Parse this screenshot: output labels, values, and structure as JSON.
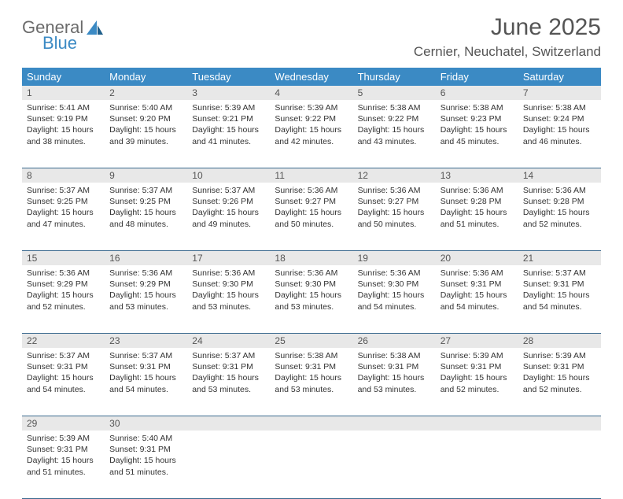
{
  "brand": {
    "name1": "General",
    "name2": "Blue"
  },
  "title": "June 2025",
  "location": "Cernier, Neuchatel, Switzerland",
  "colors": {
    "header_bg": "#3b8ac4",
    "header_text": "#ffffff",
    "daynum_bg": "#e8e8e8",
    "body_text": "#333333",
    "rule": "#3b6a8f"
  },
  "weekdays": [
    "Sunday",
    "Monday",
    "Tuesday",
    "Wednesday",
    "Thursday",
    "Friday",
    "Saturday"
  ],
  "weeks": [
    [
      {
        "n": 1,
        "sr": "5:41 AM",
        "ss": "9:19 PM",
        "dl": "15 hours and 38 minutes."
      },
      {
        "n": 2,
        "sr": "5:40 AM",
        "ss": "9:20 PM",
        "dl": "15 hours and 39 minutes."
      },
      {
        "n": 3,
        "sr": "5:39 AM",
        "ss": "9:21 PM",
        "dl": "15 hours and 41 minutes."
      },
      {
        "n": 4,
        "sr": "5:39 AM",
        "ss": "9:22 PM",
        "dl": "15 hours and 42 minutes."
      },
      {
        "n": 5,
        "sr": "5:38 AM",
        "ss": "9:22 PM",
        "dl": "15 hours and 43 minutes."
      },
      {
        "n": 6,
        "sr": "5:38 AM",
        "ss": "9:23 PM",
        "dl": "15 hours and 45 minutes."
      },
      {
        "n": 7,
        "sr": "5:38 AM",
        "ss": "9:24 PM",
        "dl": "15 hours and 46 minutes."
      }
    ],
    [
      {
        "n": 8,
        "sr": "5:37 AM",
        "ss": "9:25 PM",
        "dl": "15 hours and 47 minutes."
      },
      {
        "n": 9,
        "sr": "5:37 AM",
        "ss": "9:25 PM",
        "dl": "15 hours and 48 minutes."
      },
      {
        "n": 10,
        "sr": "5:37 AM",
        "ss": "9:26 PM",
        "dl": "15 hours and 49 minutes."
      },
      {
        "n": 11,
        "sr": "5:36 AM",
        "ss": "9:27 PM",
        "dl": "15 hours and 50 minutes."
      },
      {
        "n": 12,
        "sr": "5:36 AM",
        "ss": "9:27 PM",
        "dl": "15 hours and 50 minutes."
      },
      {
        "n": 13,
        "sr": "5:36 AM",
        "ss": "9:28 PM",
        "dl": "15 hours and 51 minutes."
      },
      {
        "n": 14,
        "sr": "5:36 AM",
        "ss": "9:28 PM",
        "dl": "15 hours and 52 minutes."
      }
    ],
    [
      {
        "n": 15,
        "sr": "5:36 AM",
        "ss": "9:29 PM",
        "dl": "15 hours and 52 minutes."
      },
      {
        "n": 16,
        "sr": "5:36 AM",
        "ss": "9:29 PM",
        "dl": "15 hours and 53 minutes."
      },
      {
        "n": 17,
        "sr": "5:36 AM",
        "ss": "9:30 PM",
        "dl": "15 hours and 53 minutes."
      },
      {
        "n": 18,
        "sr": "5:36 AM",
        "ss": "9:30 PM",
        "dl": "15 hours and 53 minutes."
      },
      {
        "n": 19,
        "sr": "5:36 AM",
        "ss": "9:30 PM",
        "dl": "15 hours and 54 minutes."
      },
      {
        "n": 20,
        "sr": "5:36 AM",
        "ss": "9:31 PM",
        "dl": "15 hours and 54 minutes."
      },
      {
        "n": 21,
        "sr": "5:37 AM",
        "ss": "9:31 PM",
        "dl": "15 hours and 54 minutes."
      }
    ],
    [
      {
        "n": 22,
        "sr": "5:37 AM",
        "ss": "9:31 PM",
        "dl": "15 hours and 54 minutes."
      },
      {
        "n": 23,
        "sr": "5:37 AM",
        "ss": "9:31 PM",
        "dl": "15 hours and 54 minutes."
      },
      {
        "n": 24,
        "sr": "5:37 AM",
        "ss": "9:31 PM",
        "dl": "15 hours and 53 minutes."
      },
      {
        "n": 25,
        "sr": "5:38 AM",
        "ss": "9:31 PM",
        "dl": "15 hours and 53 minutes."
      },
      {
        "n": 26,
        "sr": "5:38 AM",
        "ss": "9:31 PM",
        "dl": "15 hours and 53 minutes."
      },
      {
        "n": 27,
        "sr": "5:39 AM",
        "ss": "9:31 PM",
        "dl": "15 hours and 52 minutes."
      },
      {
        "n": 28,
        "sr": "5:39 AM",
        "ss": "9:31 PM",
        "dl": "15 hours and 52 minutes."
      }
    ],
    [
      {
        "n": 29,
        "sr": "5:39 AM",
        "ss": "9:31 PM",
        "dl": "15 hours and 51 minutes."
      },
      {
        "n": 30,
        "sr": "5:40 AM",
        "ss": "9:31 PM",
        "dl": "15 hours and 51 minutes."
      },
      null,
      null,
      null,
      null,
      null
    ]
  ],
  "labels": {
    "sunrise": "Sunrise:",
    "sunset": "Sunset:",
    "daylight": "Daylight:"
  }
}
